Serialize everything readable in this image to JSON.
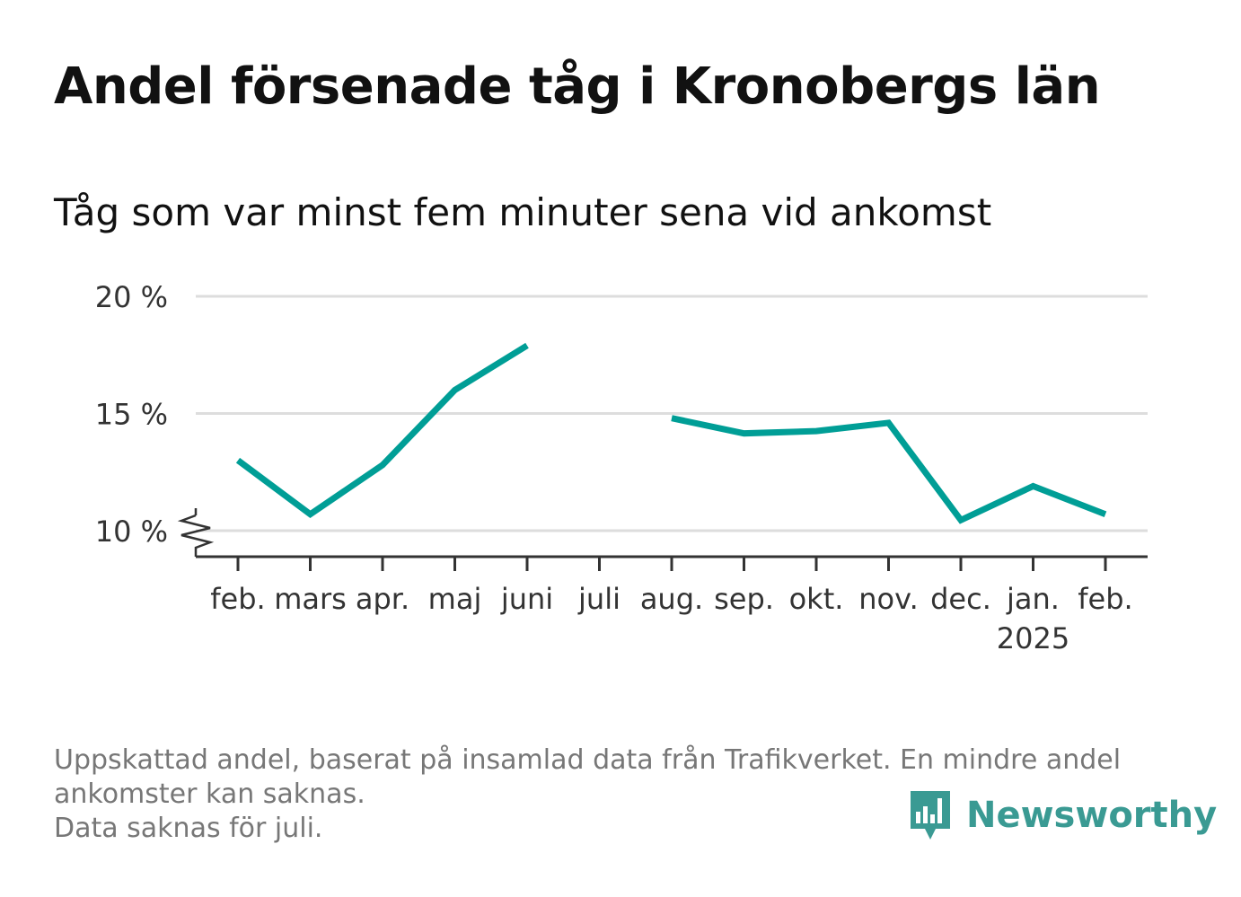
{
  "title": "Andel försenade tåg i Kronobergs län",
  "subtitle": "Tåg som var minst fem minuter sena vid ankomst",
  "footnote": {
    "line1": "Uppskattad andel, baserat på insamlad data från Trafikverket. En mindre andel",
    "line2": "ankomster kan saknas.",
    "line3": "Data saknas för juli."
  },
  "brand": {
    "name": "Newsworthy",
    "icon": "newsworthy-chart-bubble-icon",
    "color": "#3a9a93"
  },
  "chart_data": {
    "type": "line",
    "categories": [
      "feb.",
      "mars",
      "apr.",
      "maj",
      "juni",
      "juli",
      "aug.",
      "sep.",
      "okt.",
      "nov.",
      "dec.",
      "jan.",
      "feb."
    ],
    "year_label": "2025",
    "year_label_under": "jan.",
    "series": [
      {
        "color": "#009e96",
        "values": [
          13.0,
          10.7,
          12.8,
          16.0,
          17.9,
          null,
          14.8,
          14.15,
          14.25,
          14.6,
          10.45,
          11.9,
          10.7
        ]
      }
    ],
    "y_ticks": [
      10,
      15,
      20
    ],
    "y_tick_labels": [
      "10 %",
      "15 %",
      "20 %"
    ],
    "ylim": [
      10,
      20
    ],
    "y_axis_break": true,
    "grid": true,
    "xlabel": "",
    "ylabel": ""
  }
}
